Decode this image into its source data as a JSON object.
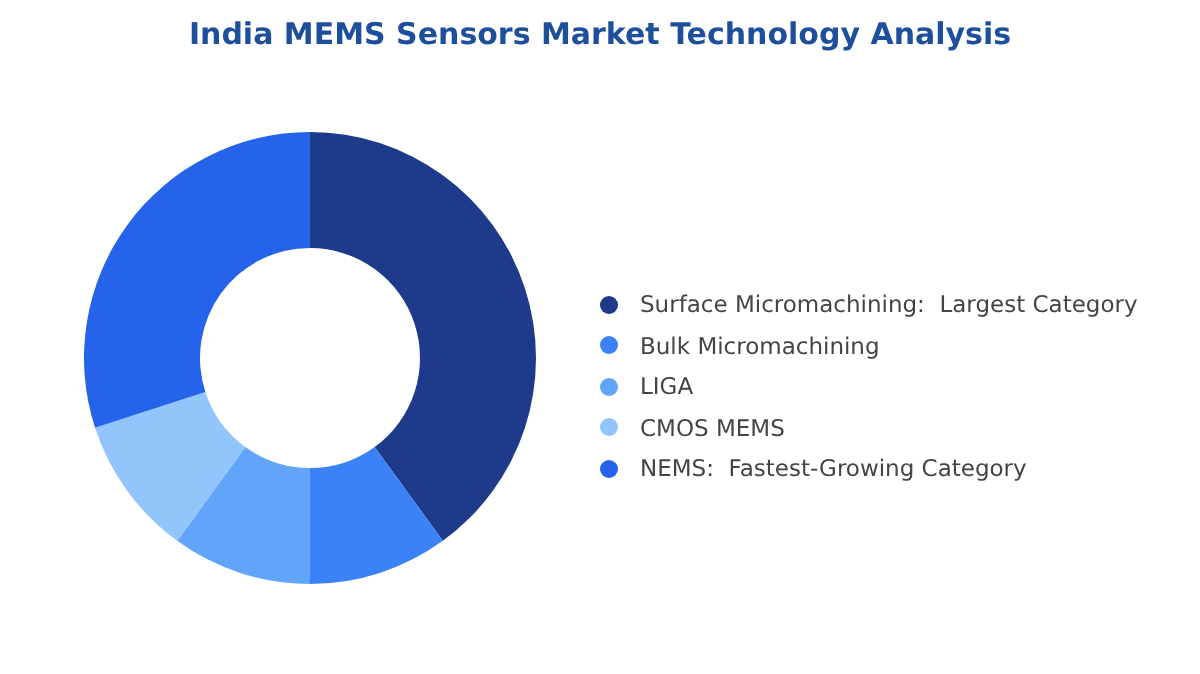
{
  "chart_data": {
    "type": "donut",
    "title": "India MEMS Sensors Market Technology Analysis",
    "categories": [
      "Surface Micromachining:  Largest Category",
      "Bulk Micromachining",
      "LIGA",
      "CMOS MEMS",
      "NEMS:  Fastest-Growing Category"
    ],
    "values": [
      40,
      10,
      10,
      10,
      30
    ],
    "colors": [
      "#1e3a8a",
      "#3b82f6",
      "#60a5fa",
      "#93c5fd",
      "#2563eb"
    ],
    "legend": "right"
  }
}
